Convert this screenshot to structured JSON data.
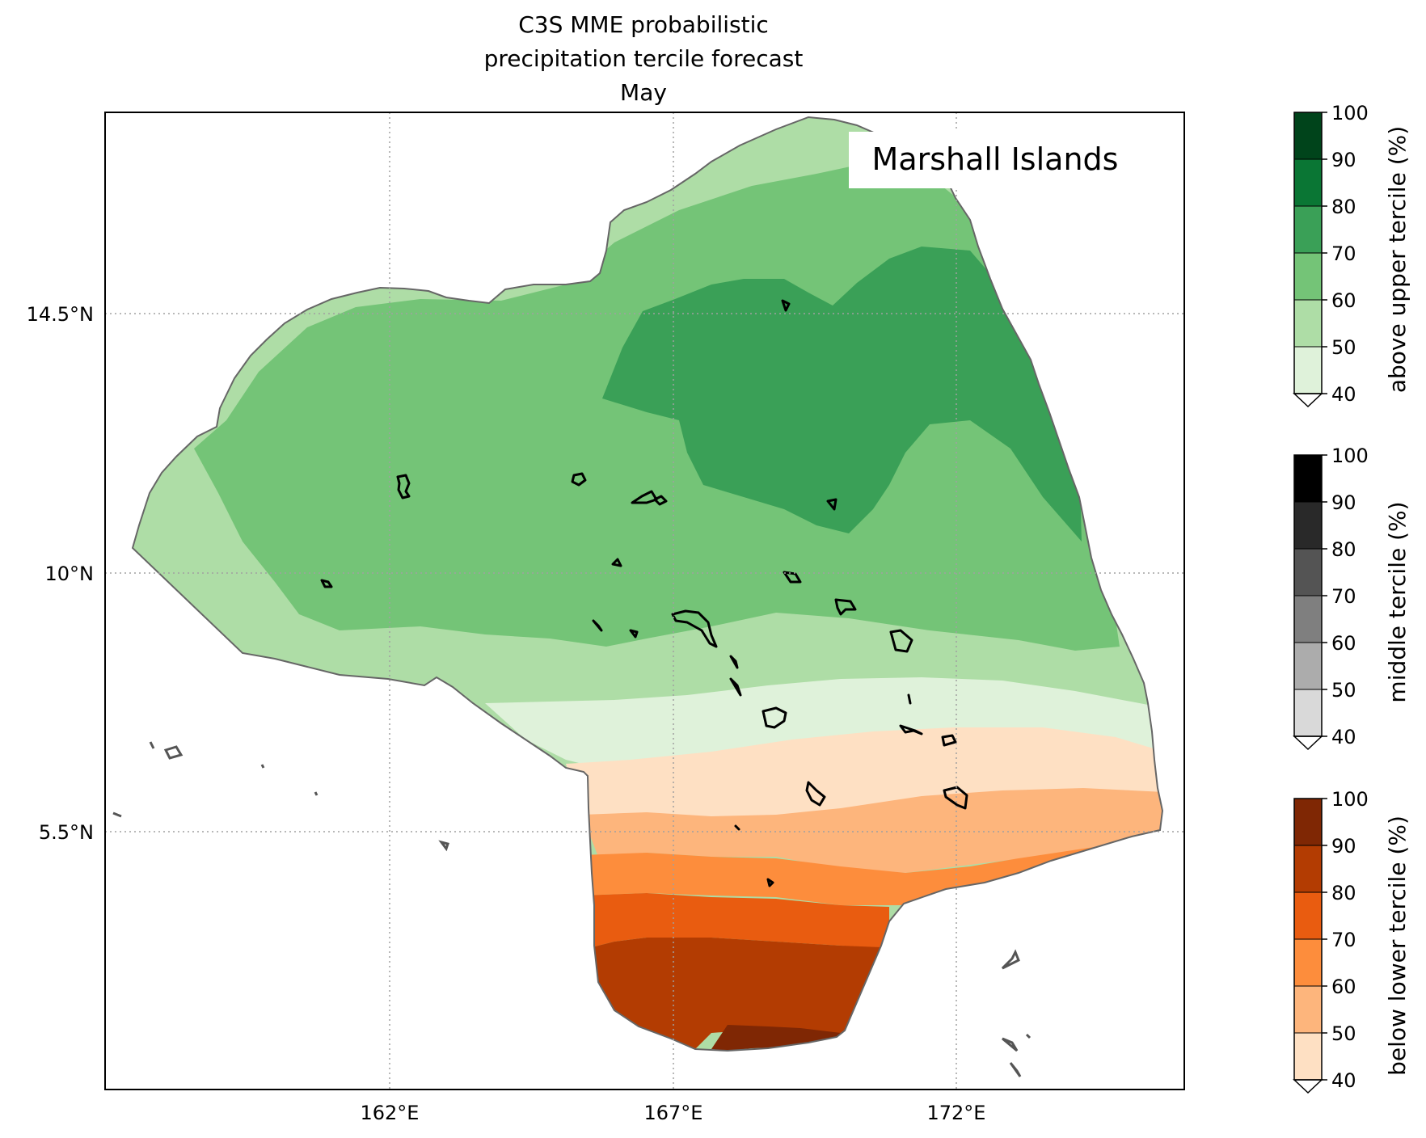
{
  "title": [
    "C3S MME probabilistic",
    "precipitation tercile forecast",
    "May"
  ],
  "region_label": "Marshall Islands",
  "map": {
    "lon_ticks": [
      {
        "value": 162,
        "label": "162°E"
      },
      {
        "value": 167,
        "label": "167°E"
      },
      {
        "value": 172,
        "label": "172°E"
      }
    ],
    "lat_ticks": [
      {
        "value": 14.5,
        "label": "14.5°N"
      },
      {
        "value": 10,
        "label": "10°N"
      },
      {
        "value": 5.5,
        "label": "5.5°N"
      }
    ],
    "gridlines": true
  },
  "colorbars": [
    {
      "label": "above upper tercile (%)",
      "ticks": [
        "40",
        "50",
        "60",
        "70",
        "80",
        "90",
        "100"
      ],
      "colors": [
        "#dff2da",
        "#aedda6",
        "#74c477",
        "#3aa057",
        "#0a7634",
        "#00441b"
      ]
    },
    {
      "label": "middle tercile (%)",
      "ticks": [
        "40",
        "50",
        "60",
        "70",
        "80",
        "90",
        "100"
      ],
      "colors": [
        "#d9d9d9",
        "#acacac",
        "#7f7f7f",
        "#545454",
        "#292929",
        "#000000"
      ]
    },
    {
      "label": "below lower tercile (%)",
      "ticks": [
        "40",
        "50",
        "60",
        "70",
        "80",
        "90",
        "100"
      ],
      "colors": [
        "#fee0c3",
        "#fdb57c",
        "#fd8d3c",
        "#e95c10",
        "#b33c02",
        "#7f2704"
      ]
    }
  ],
  "colors": {
    "above_50_60": "#aedda6",
    "above_60_70": "#74c477",
    "above_70_80": "#3aa057",
    "above_40_50": "#dff2da",
    "below_40_50": "#fee0c3",
    "below_50_60": "#fdb57c",
    "below_60_70": "#fd8d3c",
    "below_70_80": "#e95c10",
    "below_80_90": "#b33c02",
    "below_90_100": "#7f2704",
    "eez_outline": "#666666",
    "coastline": "#000000"
  }
}
